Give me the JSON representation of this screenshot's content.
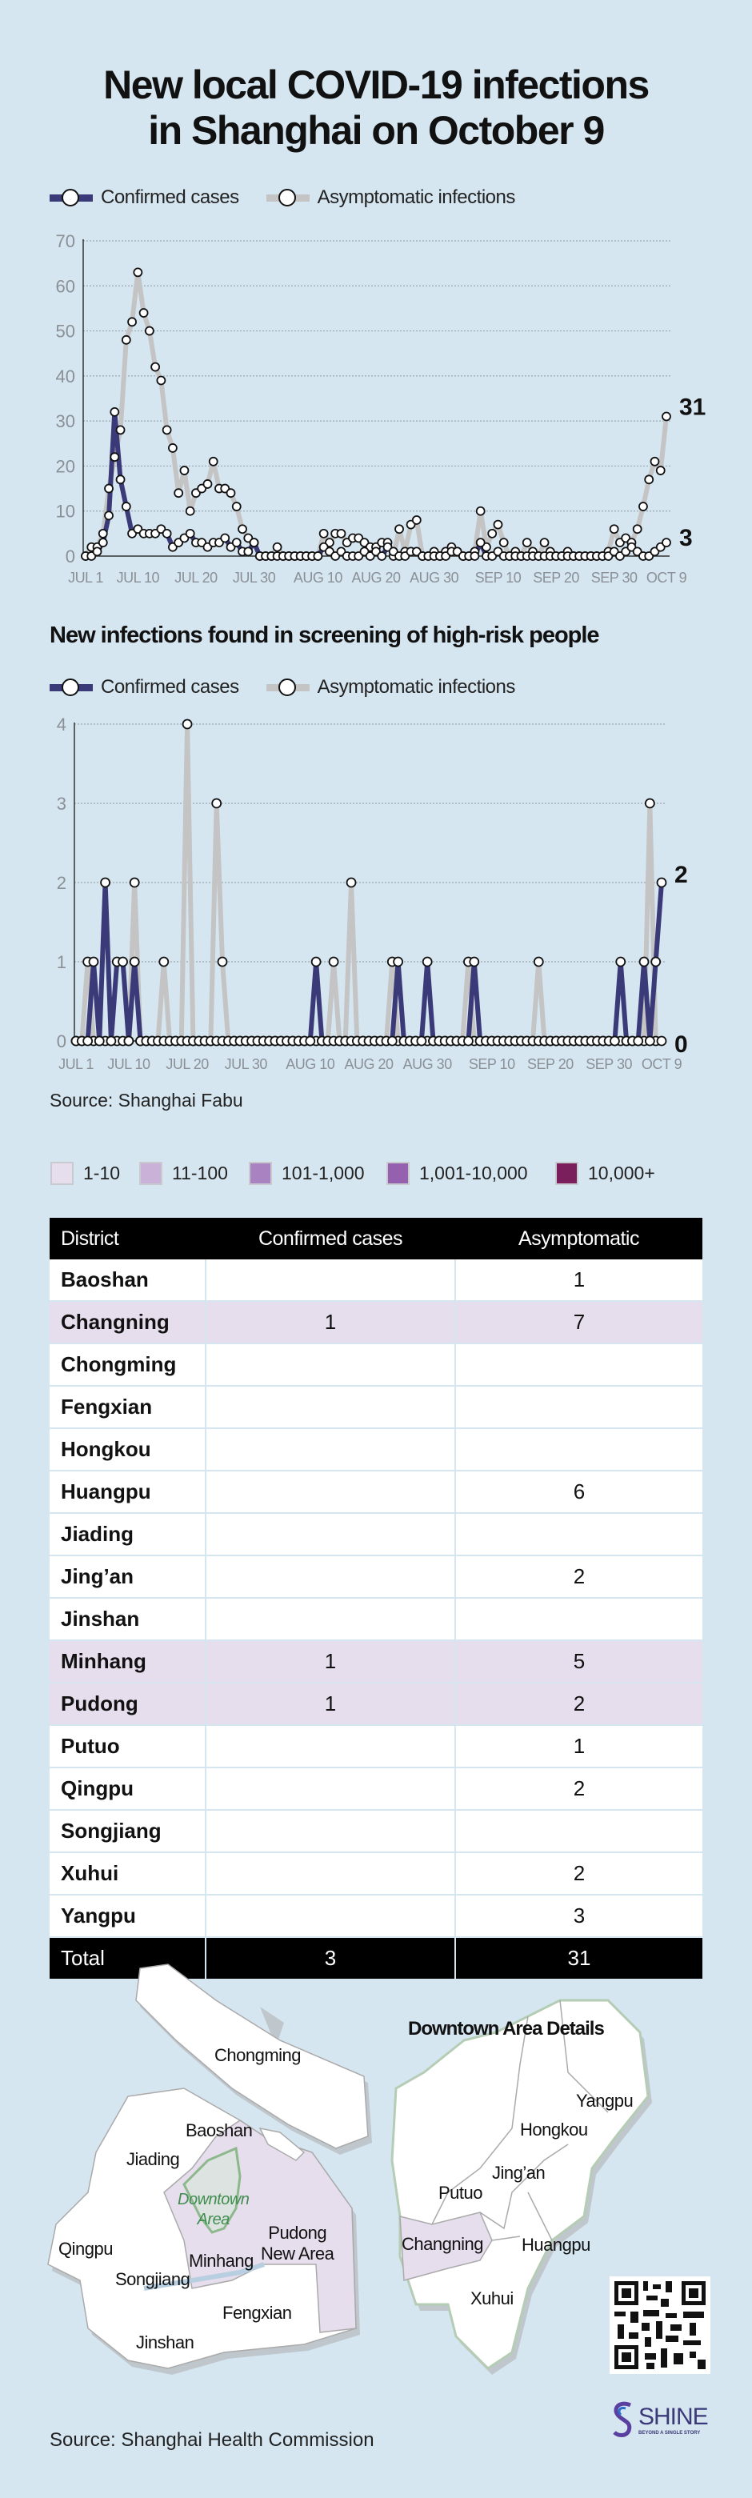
{
  "header": {
    "title_line1": "New local COVID-19 infections",
    "title_line2": "in Shanghai on October 9"
  },
  "legend": {
    "confirmed": "Confirmed cases",
    "asymptomatic": "Asymptomatic infections"
  },
  "colors": {
    "background": "#d5e6f1",
    "confirmed": "#3b3a78",
    "asymptomatic": "#c4c4c4",
    "highlight": "#e6dded"
  },
  "chart_data": [
    {
      "type": "line",
      "title": "",
      "xlabel": "",
      "ylabel": "",
      "x_start": "JUL 1",
      "x_end": "OCT 9",
      "ylim": [
        0,
        70
      ],
      "yticks": [
        0,
        10,
        20,
        30,
        40,
        50,
        60,
        70
      ],
      "xticks": [
        {
          "day": 0,
          "label": "JUL 1"
        },
        {
          "day": 9,
          "label": "JUL 10"
        },
        {
          "day": 19,
          "label": "JUL 20"
        },
        {
          "day": 29,
          "label": "JUL 30"
        },
        {
          "day": 40,
          "label": "AUG 10"
        },
        {
          "day": 50,
          "label": "AUG 20"
        },
        {
          "day": 60,
          "label": "AUG 30"
        },
        {
          "day": 71,
          "label": "SEP 10"
        },
        {
          "day": 81,
          "label": "SEP 20"
        },
        {
          "day": 91,
          "label": "SEP 30"
        },
        {
          "day": 100,
          "label": "OCT 9"
        }
      ],
      "grid": true,
      "legend_position": "top-left",
      "series": [
        {
          "name": "Asymptomatic infections",
          "end_label": "31",
          "values": [
            0,
            2,
            2,
            5,
            15,
            22,
            28,
            48,
            52,
            63,
            54,
            50,
            42,
            39,
            28,
            24,
            14,
            19,
            10,
            14,
            15,
            16,
            21,
            15,
            15,
            14,
            11,
            6,
            4,
            3,
            0,
            0,
            0,
            2,
            0,
            0,
            0,
            0,
            0,
            0,
            0,
            5,
            3,
            5,
            5,
            3,
            4,
            4,
            3,
            2,
            2,
            3,
            3,
            0,
            6,
            1,
            7,
            8,
            0,
            0,
            1,
            0,
            1,
            2,
            1,
            0,
            0,
            1,
            10,
            2,
            5,
            7,
            3,
            0,
            1,
            0,
            3,
            1,
            0,
            3,
            1,
            0,
            0,
            1,
            0,
            0,
            0,
            0,
            0,
            0,
            1,
            6,
            3,
            4,
            3,
            6,
            11,
            17,
            21,
            19,
            31
          ]
        },
        {
          "name": "Confirmed cases",
          "end_label": "3",
          "values": [
            0,
            0,
            1,
            3,
            9,
            32,
            17,
            11,
            5,
            6,
            5,
            5,
            5,
            6,
            5,
            2,
            3,
            4,
            5,
            3,
            3,
            2,
            3,
            3,
            4,
            2,
            3,
            1,
            1,
            3,
            0,
            0,
            0,
            0,
            0,
            0,
            0,
            0,
            0,
            0,
            0,
            2,
            1,
            0,
            1,
            0,
            0,
            0,
            1,
            0,
            1,
            0,
            2,
            1,
            0,
            0,
            1,
            1,
            0,
            0,
            0,
            0,
            0,
            1,
            1,
            0,
            0,
            0,
            3,
            0,
            0,
            1,
            0,
            0,
            0,
            0,
            0,
            0,
            0,
            0,
            0,
            0,
            0,
            0,
            0,
            0,
            0,
            0,
            0,
            0,
            0,
            1,
            0,
            1,
            2,
            1,
            0,
            0,
            1,
            2,
            3
          ]
        }
      ]
    },
    {
      "type": "line",
      "title": "New infections found in screening of high-risk people",
      "xlabel": "",
      "ylabel": "",
      "ylim": [
        0,
        4
      ],
      "yticks": [
        0,
        1,
        2,
        3,
        4
      ],
      "xticks": [
        {
          "day": 0,
          "label": "JUL 1"
        },
        {
          "day": 9,
          "label": "JUL 10"
        },
        {
          "day": 19,
          "label": "JUL 20"
        },
        {
          "day": 29,
          "label": "JUL 30"
        },
        {
          "day": 40,
          "label": "AUG 10"
        },
        {
          "day": 50,
          "label": "AUG 20"
        },
        {
          "day": 60,
          "label": "AUG 30"
        },
        {
          "day": 71,
          "label": "SEP 10"
        },
        {
          "day": 81,
          "label": "SEP 20"
        },
        {
          "day": 91,
          "label": "SEP 30"
        },
        {
          "day": 100,
          "label": "OCT 9"
        }
      ],
      "grid": true,
      "legend_position": "top-left",
      "series": [
        {
          "name": "Asymptomatic infections",
          "end_label": "0",
          "values": [
            0,
            0,
            1,
            0,
            0,
            0,
            0,
            0,
            0,
            0,
            2,
            0,
            0,
            0,
            0,
            1,
            0,
            0,
            0,
            4,
            0,
            0,
            0,
            0,
            3,
            1,
            0,
            0,
            0,
            0,
            0,
            0,
            0,
            0,
            0,
            0,
            0,
            0,
            0,
            0,
            0,
            0,
            0,
            0,
            1,
            0,
            0,
            2,
            0,
            0,
            0,
            0,
            0,
            0,
            1,
            0,
            0,
            0,
            0,
            0,
            0,
            0,
            0,
            0,
            0,
            0,
            0,
            1,
            0,
            0,
            0,
            0,
            0,
            0,
            0,
            0,
            0,
            0,
            0,
            1,
            0,
            0,
            0,
            0,
            0,
            0,
            0,
            0,
            0,
            0,
            0,
            0,
            0,
            0,
            0,
            0,
            0,
            0,
            3,
            0,
            0
          ]
        },
        {
          "name": "Confirmed cases",
          "end_label": "2",
          "values": [
            0,
            0,
            0,
            1,
            0,
            2,
            0,
            1,
            1,
            0,
            1,
            0,
            0,
            0,
            0,
            0,
            0,
            0,
            0,
            0,
            0,
            0,
            0,
            0,
            0,
            0,
            0,
            0,
            0,
            0,
            0,
            0,
            0,
            0,
            0,
            0,
            0,
            0,
            0,
            0,
            0,
            1,
            0,
            0,
            0,
            0,
            0,
            0,
            0,
            0,
            0,
            0,
            0,
            0,
            0,
            1,
            0,
            0,
            0,
            0,
            1,
            0,
            0,
            0,
            0,
            0,
            0,
            0,
            1,
            0,
            0,
            0,
            0,
            0,
            0,
            0,
            0,
            0,
            0,
            0,
            0,
            0,
            0,
            0,
            0,
            0,
            0,
            0,
            0,
            0,
            0,
            0,
            0,
            1,
            0,
            0,
            0,
            1,
            0,
            1,
            2
          ]
        }
      ]
    }
  ],
  "section2": {
    "title": "New infections found in screening of high-risk people",
    "source": "Source: Shanghai Fabu"
  },
  "color_legend": [
    {
      "label": "1-10",
      "color": "#e6dded"
    },
    {
      "label": "11-100",
      "color": "#c9b1d8"
    },
    {
      "label": "101-1,000",
      "color": "#a982c1"
    },
    {
      "label": "1,001-10,000",
      "color": "#9560ad"
    },
    {
      "label": "10,000+",
      "color": "#7a1f5c"
    }
  ],
  "table": {
    "headers": [
      "District",
      "Confirmed cases",
      "Asymptomatic"
    ],
    "rows": [
      {
        "district": "Baoshan",
        "confirmed": "",
        "asymptomatic": "1",
        "hl": false
      },
      {
        "district": "Changning",
        "confirmed": "1",
        "asymptomatic": "7",
        "hl": true
      },
      {
        "district": "Chongming",
        "confirmed": "",
        "asymptomatic": "",
        "hl": false
      },
      {
        "district": "Fengxian",
        "confirmed": "",
        "asymptomatic": "",
        "hl": false
      },
      {
        "district": "Hongkou",
        "confirmed": "",
        "asymptomatic": "",
        "hl": false
      },
      {
        "district": "Huangpu",
        "confirmed": "",
        "asymptomatic": "6",
        "hl": false
      },
      {
        "district": "Jiading",
        "confirmed": "",
        "asymptomatic": "",
        "hl": false
      },
      {
        "district": "Jing’an",
        "confirmed": "",
        "asymptomatic": "2",
        "hl": false
      },
      {
        "district": "Jinshan",
        "confirmed": "",
        "asymptomatic": "",
        "hl": false
      },
      {
        "district": "Minhang",
        "confirmed": "1",
        "asymptomatic": "5",
        "hl": true
      },
      {
        "district": "Pudong",
        "confirmed": "1",
        "asymptomatic": "2",
        "hl": true
      },
      {
        "district": "Putuo",
        "confirmed": "",
        "asymptomatic": "1",
        "hl": false
      },
      {
        "district": "Qingpu",
        "confirmed": "",
        "asymptomatic": "2",
        "hl": false
      },
      {
        "district": "Songjiang",
        "confirmed": "",
        "asymptomatic": "",
        "hl": false
      },
      {
        "district": "Xuhui",
        "confirmed": "",
        "asymptomatic": "2",
        "hl": false
      },
      {
        "district": "Yangpu",
        "confirmed": "",
        "asymptomatic": "3",
        "hl": false
      }
    ],
    "total": {
      "label": "Total",
      "confirmed": "3",
      "asymptomatic": "31"
    }
  },
  "map": {
    "downtown_title": "Downtown Area Details",
    "labels": {
      "chongming": "Chongming",
      "baoshan": "Baoshan",
      "jiading": "Jiading",
      "downtown1": "Downtown",
      "downtown2": "Area",
      "pudong1": "Pudong",
      "pudong2": "New Area",
      "qingpu": "Qingpu",
      "minhang": "Minhang",
      "songjiang": "Songjiang",
      "fengxian": "Fengxian",
      "jinshan": "Jinshan",
      "yangpu": "Yangpu",
      "hongkou": "Hongkou",
      "jingan": "Jing’an",
      "putuo": "Putuo",
      "changning": "Changning",
      "huangpu": "Huangpu",
      "xuhui": "Xuhui"
    }
  },
  "footer": {
    "source": "Source: Shanghai Health Commission",
    "logo": "SHINE",
    "tagline": "BEYOND A SINGLE STORY"
  }
}
